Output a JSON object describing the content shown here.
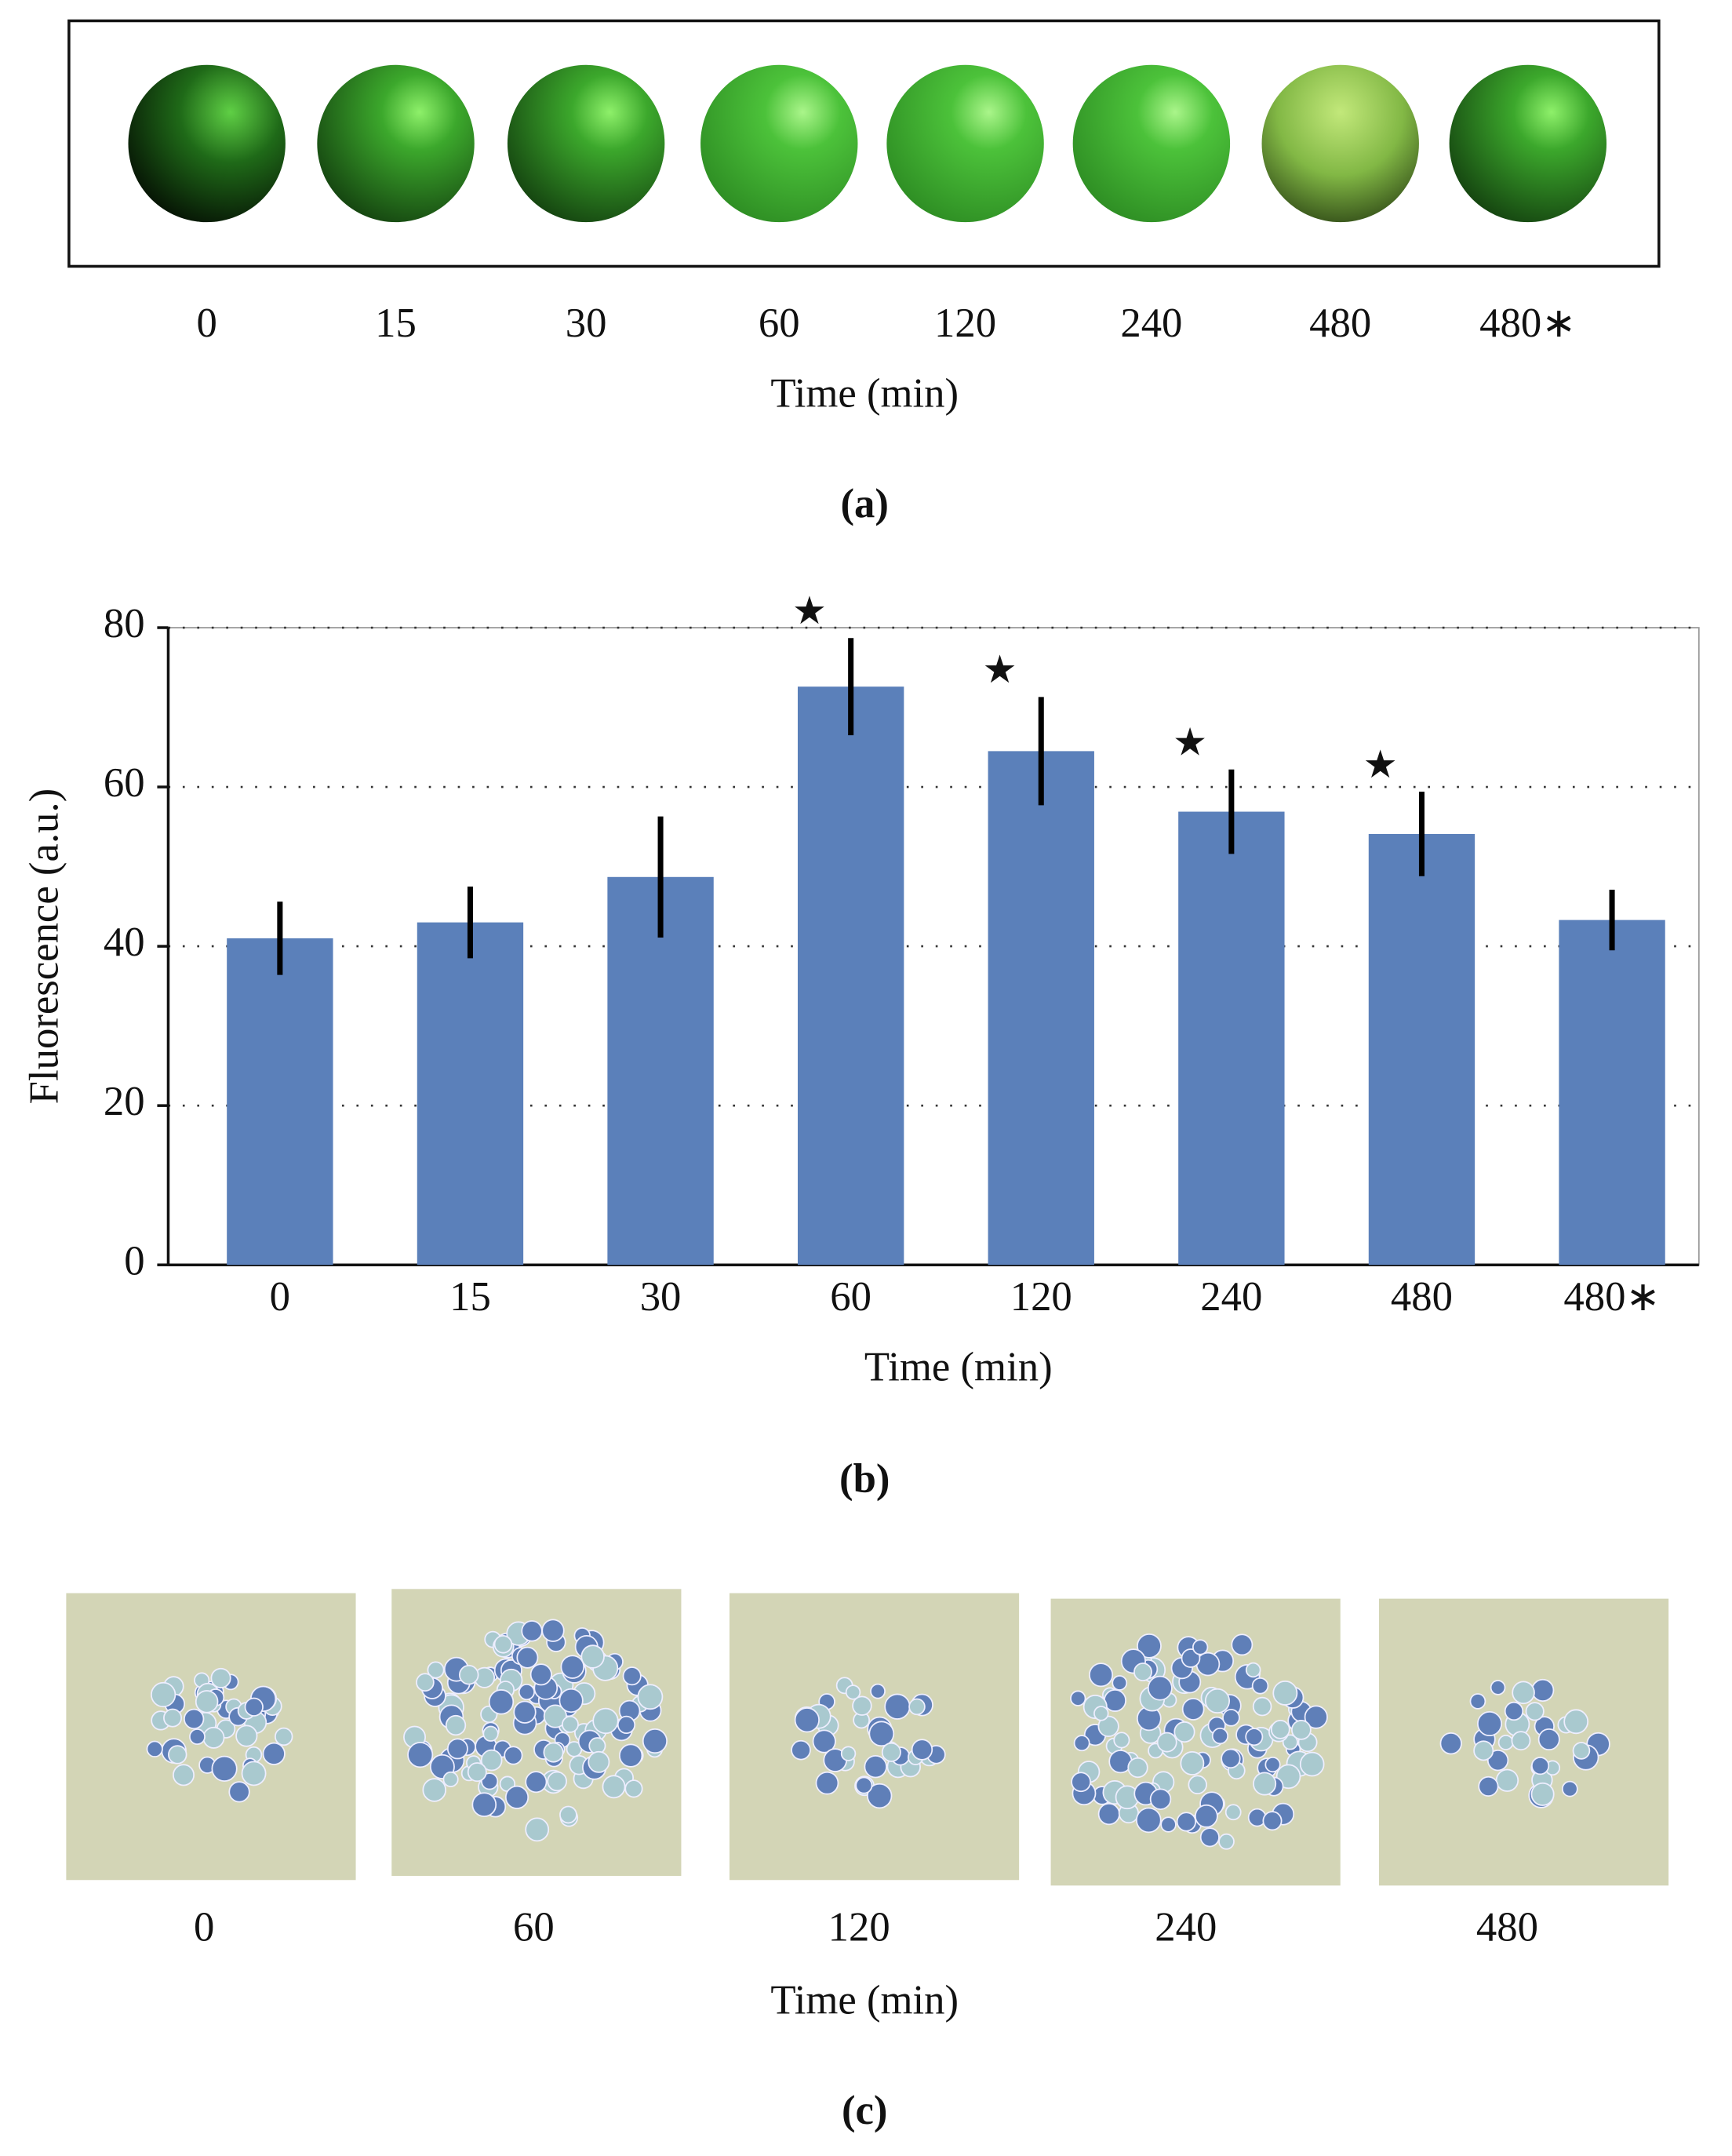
{
  "panel_a": {
    "time_labels": [
      "0",
      "15",
      "30",
      "60",
      "120",
      "240",
      "480",
      "480∗"
    ],
    "x_label": "Time (min)",
    "caption": "(a)"
  },
  "chart_data": {
    "type": "bar",
    "y_label": "Fluorescence (a.u.)",
    "x_label": "Time (min)",
    "caption": "(b)",
    "categories": [
      "0",
      "15",
      "30",
      "60",
      "120",
      "240",
      "480",
      "480∗"
    ],
    "values": [
      41,
      43,
      48.7,
      72.6,
      64.5,
      56.9,
      54.1,
      43.3
    ],
    "errors": [
      4.6,
      4.5,
      7.6,
      6.1,
      6.8,
      5.3,
      5.3,
      3.8
    ],
    "significance": [
      null,
      null,
      null,
      "★",
      "★",
      "★",
      "★",
      null
    ],
    "color": "#5b80ba",
    "ylim": [
      0,
      80
    ],
    "yticks": [
      0,
      20,
      40,
      60,
      80
    ],
    "grid": true
  },
  "panel_c": {
    "time_labels": [
      "0",
      "60",
      "120",
      "240",
      "480"
    ],
    "x_label": "Time (min)",
    "caption": "(c)"
  }
}
